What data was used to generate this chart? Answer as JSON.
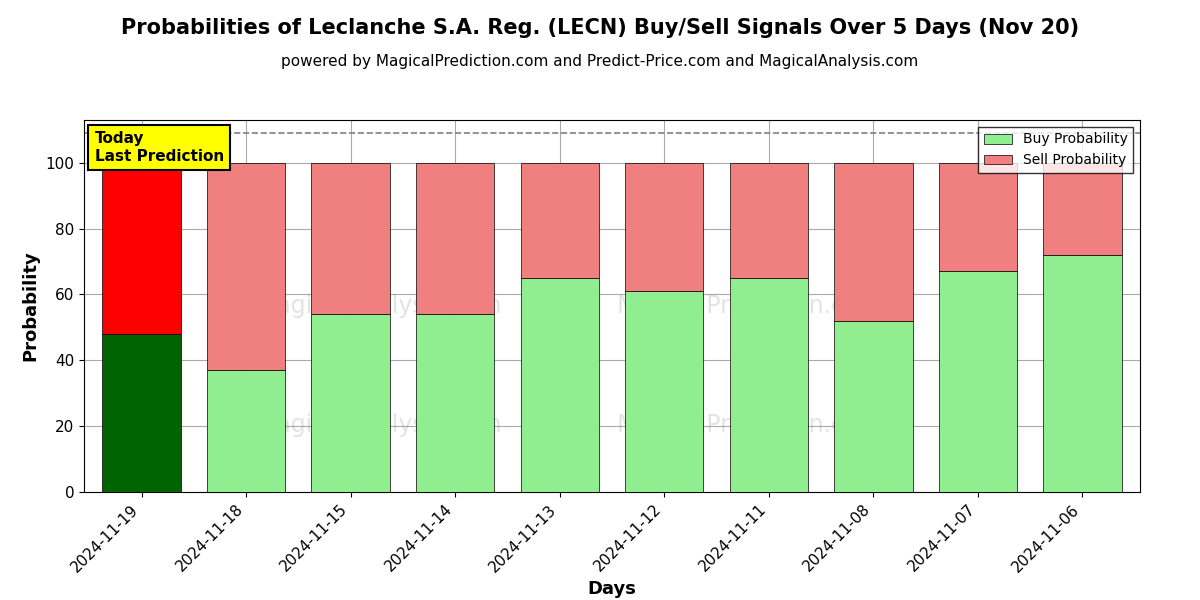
{
  "title": "Probabilities of Leclanche S.A. Reg. (LECN) Buy/Sell Signals Over 5 Days (Nov 20)",
  "subtitle": "powered by MagicalPrediction.com and Predict-Price.com and MagicalAnalysis.com",
  "xlabel": "Days",
  "ylabel": "Probability",
  "dates": [
    "2024-11-19",
    "2024-11-18",
    "2024-11-15",
    "2024-11-14",
    "2024-11-13",
    "2024-11-12",
    "2024-11-11",
    "2024-11-08",
    "2024-11-07",
    "2024-11-06"
  ],
  "buy_values": [
    48,
    37,
    54,
    54,
    65,
    61,
    65,
    52,
    67,
    72
  ],
  "sell_values": [
    52,
    63,
    46,
    46,
    35,
    39,
    35,
    48,
    33,
    28
  ],
  "today_bar_buy_color": "#006400",
  "today_bar_sell_color": "#ff0000",
  "other_bar_buy_color": "#90ee90",
  "other_bar_sell_color": "#f08080",
  "today_annotation_bg": "#ffff00",
  "today_annotation_text": "Today\nLast Prediction",
  "ylim": [
    0,
    113
  ],
  "dashed_line_y": 109,
  "legend_buy_label": "Buy Probability",
  "legend_sell_label": "Sell Probability",
  "background_color": "#ffffff",
  "grid_color": "#aaaaaa",
  "title_fontsize": 15,
  "subtitle_fontsize": 11,
  "axis_label_fontsize": 13,
  "tick_fontsize": 11
}
